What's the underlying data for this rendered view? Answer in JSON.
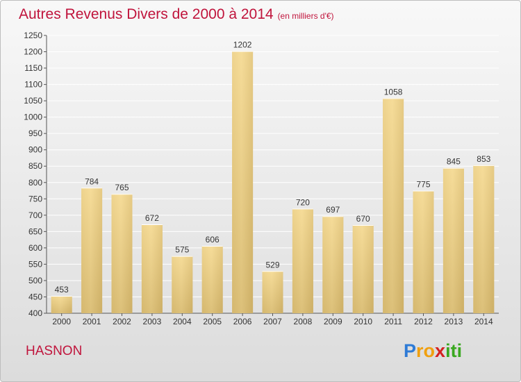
{
  "chart_data": {
    "type": "bar",
    "title": "Autres Revenus Divers de 2000 à 2014",
    "subtitle": "(en milliers d'€)",
    "categories": [
      "2000",
      "2001",
      "2002",
      "2003",
      "2004",
      "2005",
      "2006",
      "2007",
      "2008",
      "2009",
      "2010",
      "2011",
      "2012",
      "2013",
      "2014"
    ],
    "values": [
      453,
      784,
      765,
      672,
      575,
      606,
      1202,
      529,
      720,
      697,
      670,
      1058,
      775,
      845,
      853
    ],
    "ylim": [
      400,
      1250
    ],
    "yticks": [
      400,
      450,
      500,
      550,
      600,
      650,
      700,
      750,
      800,
      850,
      900,
      950,
      1000,
      1050,
      1100,
      1150,
      1200,
      1250
    ],
    "grid": true,
    "xlabel": "",
    "ylabel": ""
  },
  "place": "HASNON",
  "logo": {
    "letters": [
      "P",
      "r",
      "o",
      "x",
      "i",
      "t",
      "i"
    ],
    "colors": [
      "#2e7bd6",
      "#f0a010",
      "#f0a010",
      "#d42020",
      "#3aa820",
      "#3aa820",
      "#3aa820"
    ]
  }
}
